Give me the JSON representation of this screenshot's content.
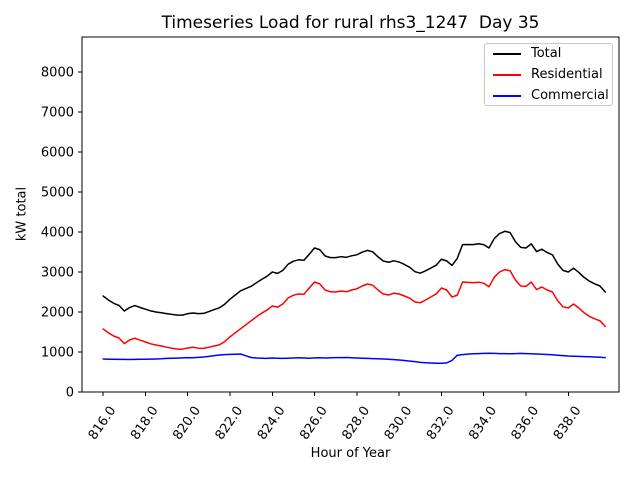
{
  "chart_data": {
    "type": "line",
    "title": "Timeseries Load for rural rhs3_1247  Day 35",
    "xlabel": "Hour of Year",
    "ylabel": "kW total",
    "grid": false,
    "legend_position": "upper right",
    "xlim": [
      815.0,
      840.4
    ],
    "ylim": [
      0,
      8875
    ],
    "x_ticks": [
      "816.0",
      "818.0",
      "820.0",
      "822.0",
      "824.0",
      "826.0",
      "828.0",
      "830.0",
      "832.0",
      "834.0",
      "836.0",
      "838.0"
    ],
    "x_tick_values": [
      816,
      818,
      820,
      822,
      824,
      826,
      828,
      830,
      832,
      834,
      836,
      838
    ],
    "y_ticks": [
      0,
      1000,
      2000,
      3000,
      4000,
      5000,
      6000,
      7000,
      8000
    ],
    "x_start": 816.0,
    "x_step": 0.25,
    "series": [
      {
        "name": "Total",
        "color": "#000000",
        "values": [
          2400,
          2300,
          2218,
          2165,
          2025,
          2112,
          2160,
          2113,
          2070,
          2027,
          2000,
          1980,
          1960,
          1940,
          1923,
          1922,
          1958,
          1975,
          1960,
          1965,
          2010,
          2060,
          2105,
          2195,
          2320,
          2425,
          2530,
          2585,
          2642,
          2730,
          2815,
          2892,
          3000,
          2965,
          3040,
          3195,
          3270,
          3305,
          3295,
          3445,
          3602,
          3556,
          3400,
          3360,
          3360,
          3383,
          3367,
          3405,
          3430,
          3495,
          3540,
          3505,
          3380,
          3275,
          3243,
          3280,
          3250,
          3188,
          3117,
          3008,
          2970,
          3030,
          3099,
          3170,
          3318,
          3278,
          3165,
          3340,
          3685,
          3688,
          3685,
          3705,
          3685,
          3600,
          3835,
          3960,
          4018,
          3985,
          3760,
          3615,
          3600,
          3705,
          3510,
          3570,
          3488,
          3430,
          3200,
          3040,
          3000,
          3095,
          2990,
          2865,
          2770,
          2705,
          2650,
          2500
        ]
      },
      {
        "name": "Residential",
        "color": "#ff0000",
        "values": [
          1575,
          1480,
          1400,
          1350,
          1210,
          1300,
          1345,
          1295,
          1250,
          1205,
          1175,
          1150,
          1120,
          1095,
          1075,
          1070,
          1100,
          1120,
          1095,
          1090,
          1120,
          1150,
          1180,
          1260,
          1380,
          1480,
          1580,
          1680,
          1780,
          1880,
          1970,
          2050,
          2150,
          2120,
          2200,
          2350,
          2420,
          2450,
          2445,
          2600,
          2750,
          2700,
          2550,
          2505,
          2500,
          2525,
          2505,
          2550,
          2580,
          2650,
          2700,
          2670,
          2550,
          2450,
          2425,
          2470,
          2450,
          2400,
          2345,
          2250,
          2230,
          2300,
          2375,
          2450,
          2600,
          2550,
          2375,
          2420,
          2750,
          2740,
          2730,
          2745,
          2720,
          2630,
          2870,
          3000,
          3060,
          3030,
          2800,
          2650,
          2640,
          2750,
          2560,
          2625,
          2550,
          2500,
          2280,
          2130,
          2100,
          2200,
          2100,
          1980,
          1890,
          1830,
          1780,
          1640
        ]
      },
      {
        "name": "Commercial",
        "color": "#0000ff",
        "values": [
          825,
          820,
          818,
          815,
          815,
          812,
          815,
          818,
          820,
          822,
          825,
          830,
          840,
          845,
          848,
          852,
          858,
          855,
          865,
          875,
          890,
          910,
          925,
          935,
          940,
          945,
          950,
          905,
          862,
          850,
          845,
          842,
          850,
          845,
          840,
          845,
          850,
          855,
          850,
          845,
          852,
          856,
          850,
          855,
          860,
          858,
          862,
          855,
          850,
          845,
          840,
          835,
          830,
          825,
          818,
          810,
          800,
          788,
          772,
          758,
          740,
          730,
          724,
          720,
          718,
          728,
          790,
          920,
          935,
          948,
          955,
          960,
          965,
          970,
          965,
          960,
          958,
          955,
          960,
          965,
          960,
          955,
          950,
          945,
          938,
          930,
          920,
          910,
          900,
          895,
          890,
          885,
          880,
          875,
          870,
          860
        ]
      }
    ]
  }
}
